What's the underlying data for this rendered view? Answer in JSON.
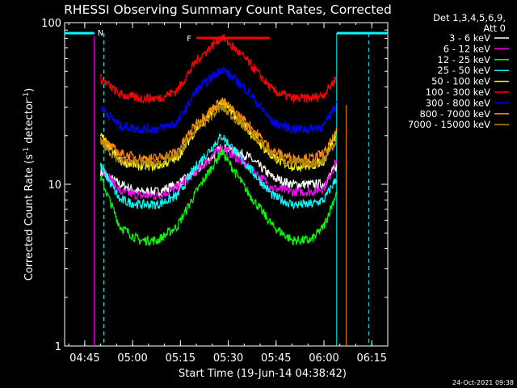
{
  "chart_data": {
    "type": "line",
    "title": "RHESSI Observing Summary Count Rates, Corrected",
    "xlabel": "Start Time (19-Jun-14 04:38:42)",
    "ylabel": "Corrected Count Rate (s⁻¹ detector⁻¹)",
    "ylabel_base": "Corrected Count Rate (s",
    "ylabel_mid": " detector",
    "ylabel_end": ")",
    "ylabel_sup": "-1",
    "yscale": "log",
    "ylim": [
      1,
      100
    ],
    "xlim": [
      "04:38:42",
      "06:20:00"
    ],
    "ytick_labels": [
      "1",
      "10",
      "100"
    ],
    "xtick_labels": [
      "04:45",
      "05:00",
      "05:15",
      "05:30",
      "05:45",
      "06:00",
      "06:15"
    ],
    "detector_info": [
      "Det 1,3,4,5,6,9,",
      "Att 0"
    ],
    "footer_date": "24-Oct-2021 09:38",
    "flags": {
      "night_label": "N",
      "flare_label": "F",
      "night_color": "#00ffff",
      "flare_color": "#ff0000"
    },
    "series": [
      {
        "name": "3 - 6 keV",
        "color": "#ffffff",
        "values": [
          12,
          10,
          9,
          9,
          10,
          12,
          17,
          15,
          11,
          10,
          10,
          10,
          13
        ]
      },
      {
        "name": "6 - 12 keV",
        "color": "#ff00ff",
        "values": [
          13,
          9,
          8.5,
          8.5,
          9.5,
          12,
          17,
          13,
          9.5,
          9,
          9,
          9.5,
          14
        ]
      },
      {
        "name": "12 - 25 keV",
        "color": "#00ff00",
        "values": [
          11,
          5.5,
          4.5,
          4.5,
          5.5,
          9,
          16,
          9,
          5.5,
          4.5,
          4.5,
          5.5,
          9
        ]
      },
      {
        "name": "25 - 50 keV",
        "color": "#00ffff",
        "values": [
          13,
          8,
          7.5,
          7.5,
          8.5,
          13,
          20,
          13,
          8.5,
          7.5,
          7.5,
          8,
          11
        ]
      },
      {
        "name": "50 - 100 keV",
        "color": "#ffff00",
        "values": [
          20,
          14,
          13,
          13,
          14.5,
          22,
          32,
          22,
          14.5,
          13,
          13,
          14,
          21
        ]
      },
      {
        "name": "100 - 300 keV",
        "color": "#ff0000",
        "values": [
          45,
          36,
          34,
          34,
          38,
          58,
          82,
          58,
          38,
          34,
          34,
          36,
          46
        ]
      },
      {
        "name": "300 - 800 keV",
        "color": "#0000ff",
        "values": [
          30,
          23,
          22,
          22,
          24,
          38,
          52,
          38,
          24,
          22,
          22,
          23,
          32
        ]
      },
      {
        "name": "800 - 7000 keV",
        "color": "#ff8c00",
        "values": [
          19,
          15.5,
          14.5,
          14.5,
          16,
          24,
          33,
          24,
          16,
          14.5,
          14.5,
          15.5,
          21
        ]
      },
      {
        "name": "7000 - 15000 keV",
        "color": "#b8860b",
        "values": [
          18,
          14,
          13.5,
          13.5,
          15,
          22,
          30,
          22,
          15,
          13.5,
          13.5,
          14,
          19
        ]
      }
    ],
    "x": [
      "04:50",
      "04:56",
      "05:02",
      "05:08",
      "05:14",
      "05:20",
      "05:28",
      "05:36",
      "05:44",
      "05:50",
      "05:56",
      "06:00",
      "06:04"
    ]
  }
}
